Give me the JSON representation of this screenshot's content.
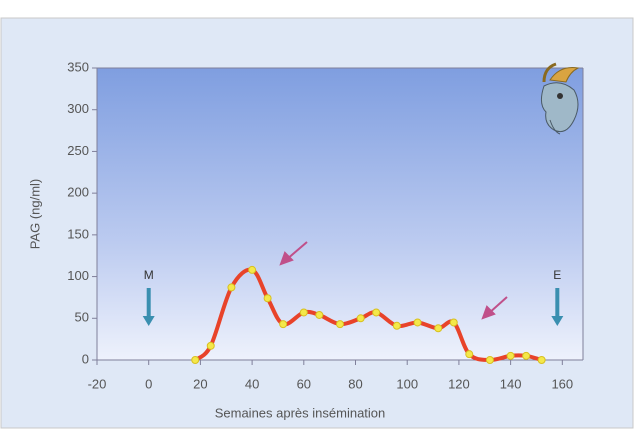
{
  "chart_data": {
    "type": "line",
    "x_label": "Semaines après insémination",
    "y_label": "PAG (ng/ml)",
    "x": [
      18,
      24,
      32,
      40,
      46,
      52,
      60,
      66,
      74,
      82,
      88,
      96,
      104,
      112,
      118,
      124,
      132,
      140,
      146,
      152
    ],
    "series": [
      {
        "color": "#e8432a",
        "values": [
          0,
          17,
          87,
          108,
          74,
          43,
          57,
          54,
          43,
          50,
          57,
          41,
          45,
          38,
          45,
          7,
          0,
          5,
          5,
          0
        ]
      }
    ],
    "xlim": [
      -20,
      168
    ],
    "xticks": [
      -20,
      0,
      20,
      40,
      60,
      80,
      100,
      120,
      140,
      160
    ],
    "ylim": [
      0,
      350
    ],
    "yticks": [
      0,
      50,
      100,
      150,
      200,
      250,
      300,
      350
    ],
    "annotations": [
      {
        "text": "M"
      },
      {
        "text": "E"
      }
    ]
  }
}
